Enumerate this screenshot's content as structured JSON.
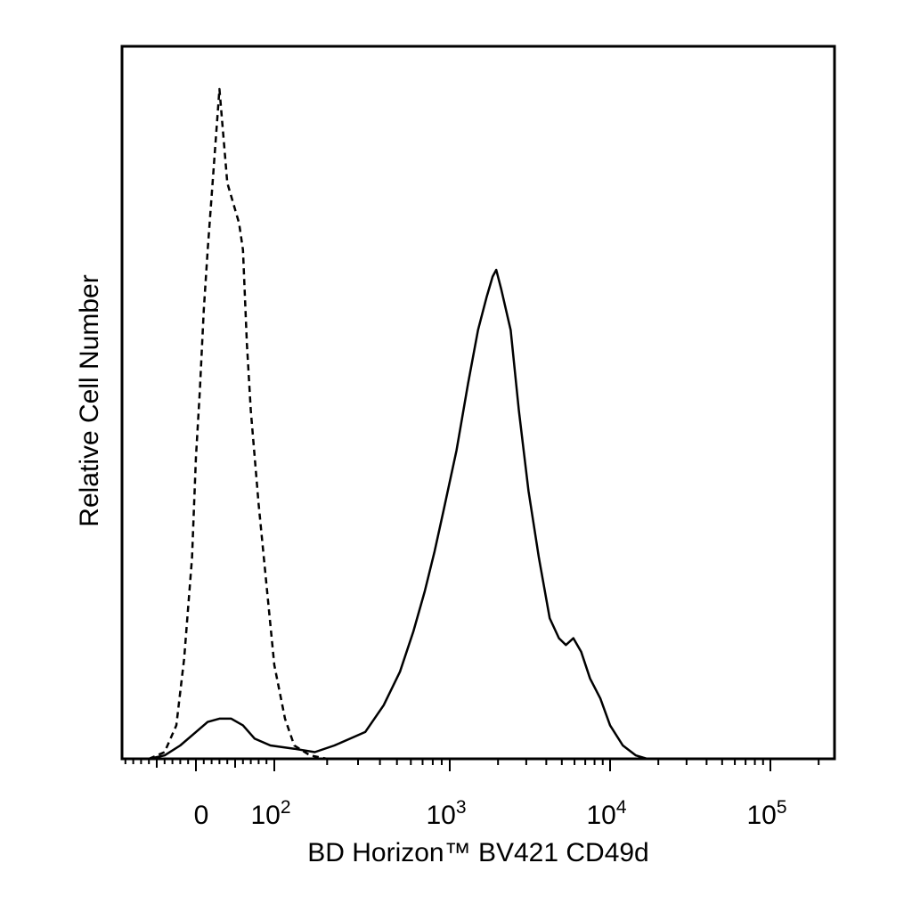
{
  "chart_data": {
    "type": "line",
    "title": "",
    "xlabel": "BD Horizon™ BV421 CD49d",
    "ylabel": "Relative Cell Number",
    "x_scale": "biexponential",
    "y_scale": "linear",
    "ylim": [
      0,
      100
    ],
    "grid": false,
    "legend": "none",
    "x_tick_labels": [
      {
        "value": 0,
        "base": "0",
        "exp": ""
      },
      {
        "value": 100,
        "base": "10",
        "exp": "2"
      },
      {
        "value": 1000,
        "base": "10",
        "exp": "3"
      },
      {
        "value": 10000,
        "base": "10",
        "exp": "4"
      },
      {
        "value": 100000,
        "base": "10",
        "exp": "5"
      }
    ],
    "series": [
      {
        "style": "dashed",
        "color": "#000000",
        "points": [
          [
            -60,
            0
          ],
          [
            -40,
            1
          ],
          [
            -25,
            5
          ],
          [
            -15,
            15
          ],
          [
            -5,
            30
          ],
          [
            0,
            45
          ],
          [
            5,
            55
          ],
          [
            10,
            67
          ],
          [
            15,
            76
          ],
          [
            20,
            84
          ],
          [
            25,
            92
          ],
          [
            30,
            100
          ],
          [
            35,
            93
          ],
          [
            40,
            86
          ],
          [
            45,
            84
          ],
          [
            50,
            82
          ],
          [
            55,
            80
          ],
          [
            60,
            76
          ],
          [
            65,
            62
          ],
          [
            70,
            52
          ],
          [
            80,
            38
          ],
          [
            90,
            26
          ],
          [
            100,
            14
          ],
          [
            115,
            6
          ],
          [
            130,
            2
          ],
          [
            160,
            0.5
          ],
          [
            200,
            0
          ],
          [
            500,
            0
          ],
          [
            3000,
            0
          ]
        ]
      },
      {
        "style": "solid",
        "color": "#000000",
        "points": [
          [
            -60,
            0
          ],
          [
            -40,
            0.5
          ],
          [
            -20,
            2
          ],
          [
            0,
            4
          ],
          [
            15,
            5.5
          ],
          [
            30,
            6
          ],
          [
            45,
            6
          ],
          [
            60,
            5
          ],
          [
            75,
            3
          ],
          [
            95,
            2
          ],
          [
            130,
            1.5
          ],
          [
            170,
            1
          ],
          [
            220,
            2
          ],
          [
            270,
            3
          ],
          [
            330,
            4
          ],
          [
            420,
            8
          ],
          [
            520,
            13
          ],
          [
            620,
            19
          ],
          [
            720,
            25
          ],
          [
            820,
            31
          ],
          [
            920,
            37
          ],
          [
            1100,
            46
          ],
          [
            1300,
            56
          ],
          [
            1500,
            64
          ],
          [
            1700,
            69
          ],
          [
            1850,
            72
          ],
          [
            1950,
            73
          ],
          [
            2100,
            70
          ],
          [
            2400,
            64
          ],
          [
            2700,
            52
          ],
          [
            3100,
            40
          ],
          [
            3600,
            30
          ],
          [
            4200,
            21
          ],
          [
            4800,
            18
          ],
          [
            5300,
            17
          ],
          [
            5900,
            18
          ],
          [
            6600,
            16
          ],
          [
            7500,
            12
          ],
          [
            8700,
            9
          ],
          [
            10000,
            5
          ],
          [
            12000,
            2
          ],
          [
            14500,
            0.5
          ],
          [
            17000,
            0
          ],
          [
            200000,
            0
          ]
        ]
      }
    ]
  }
}
